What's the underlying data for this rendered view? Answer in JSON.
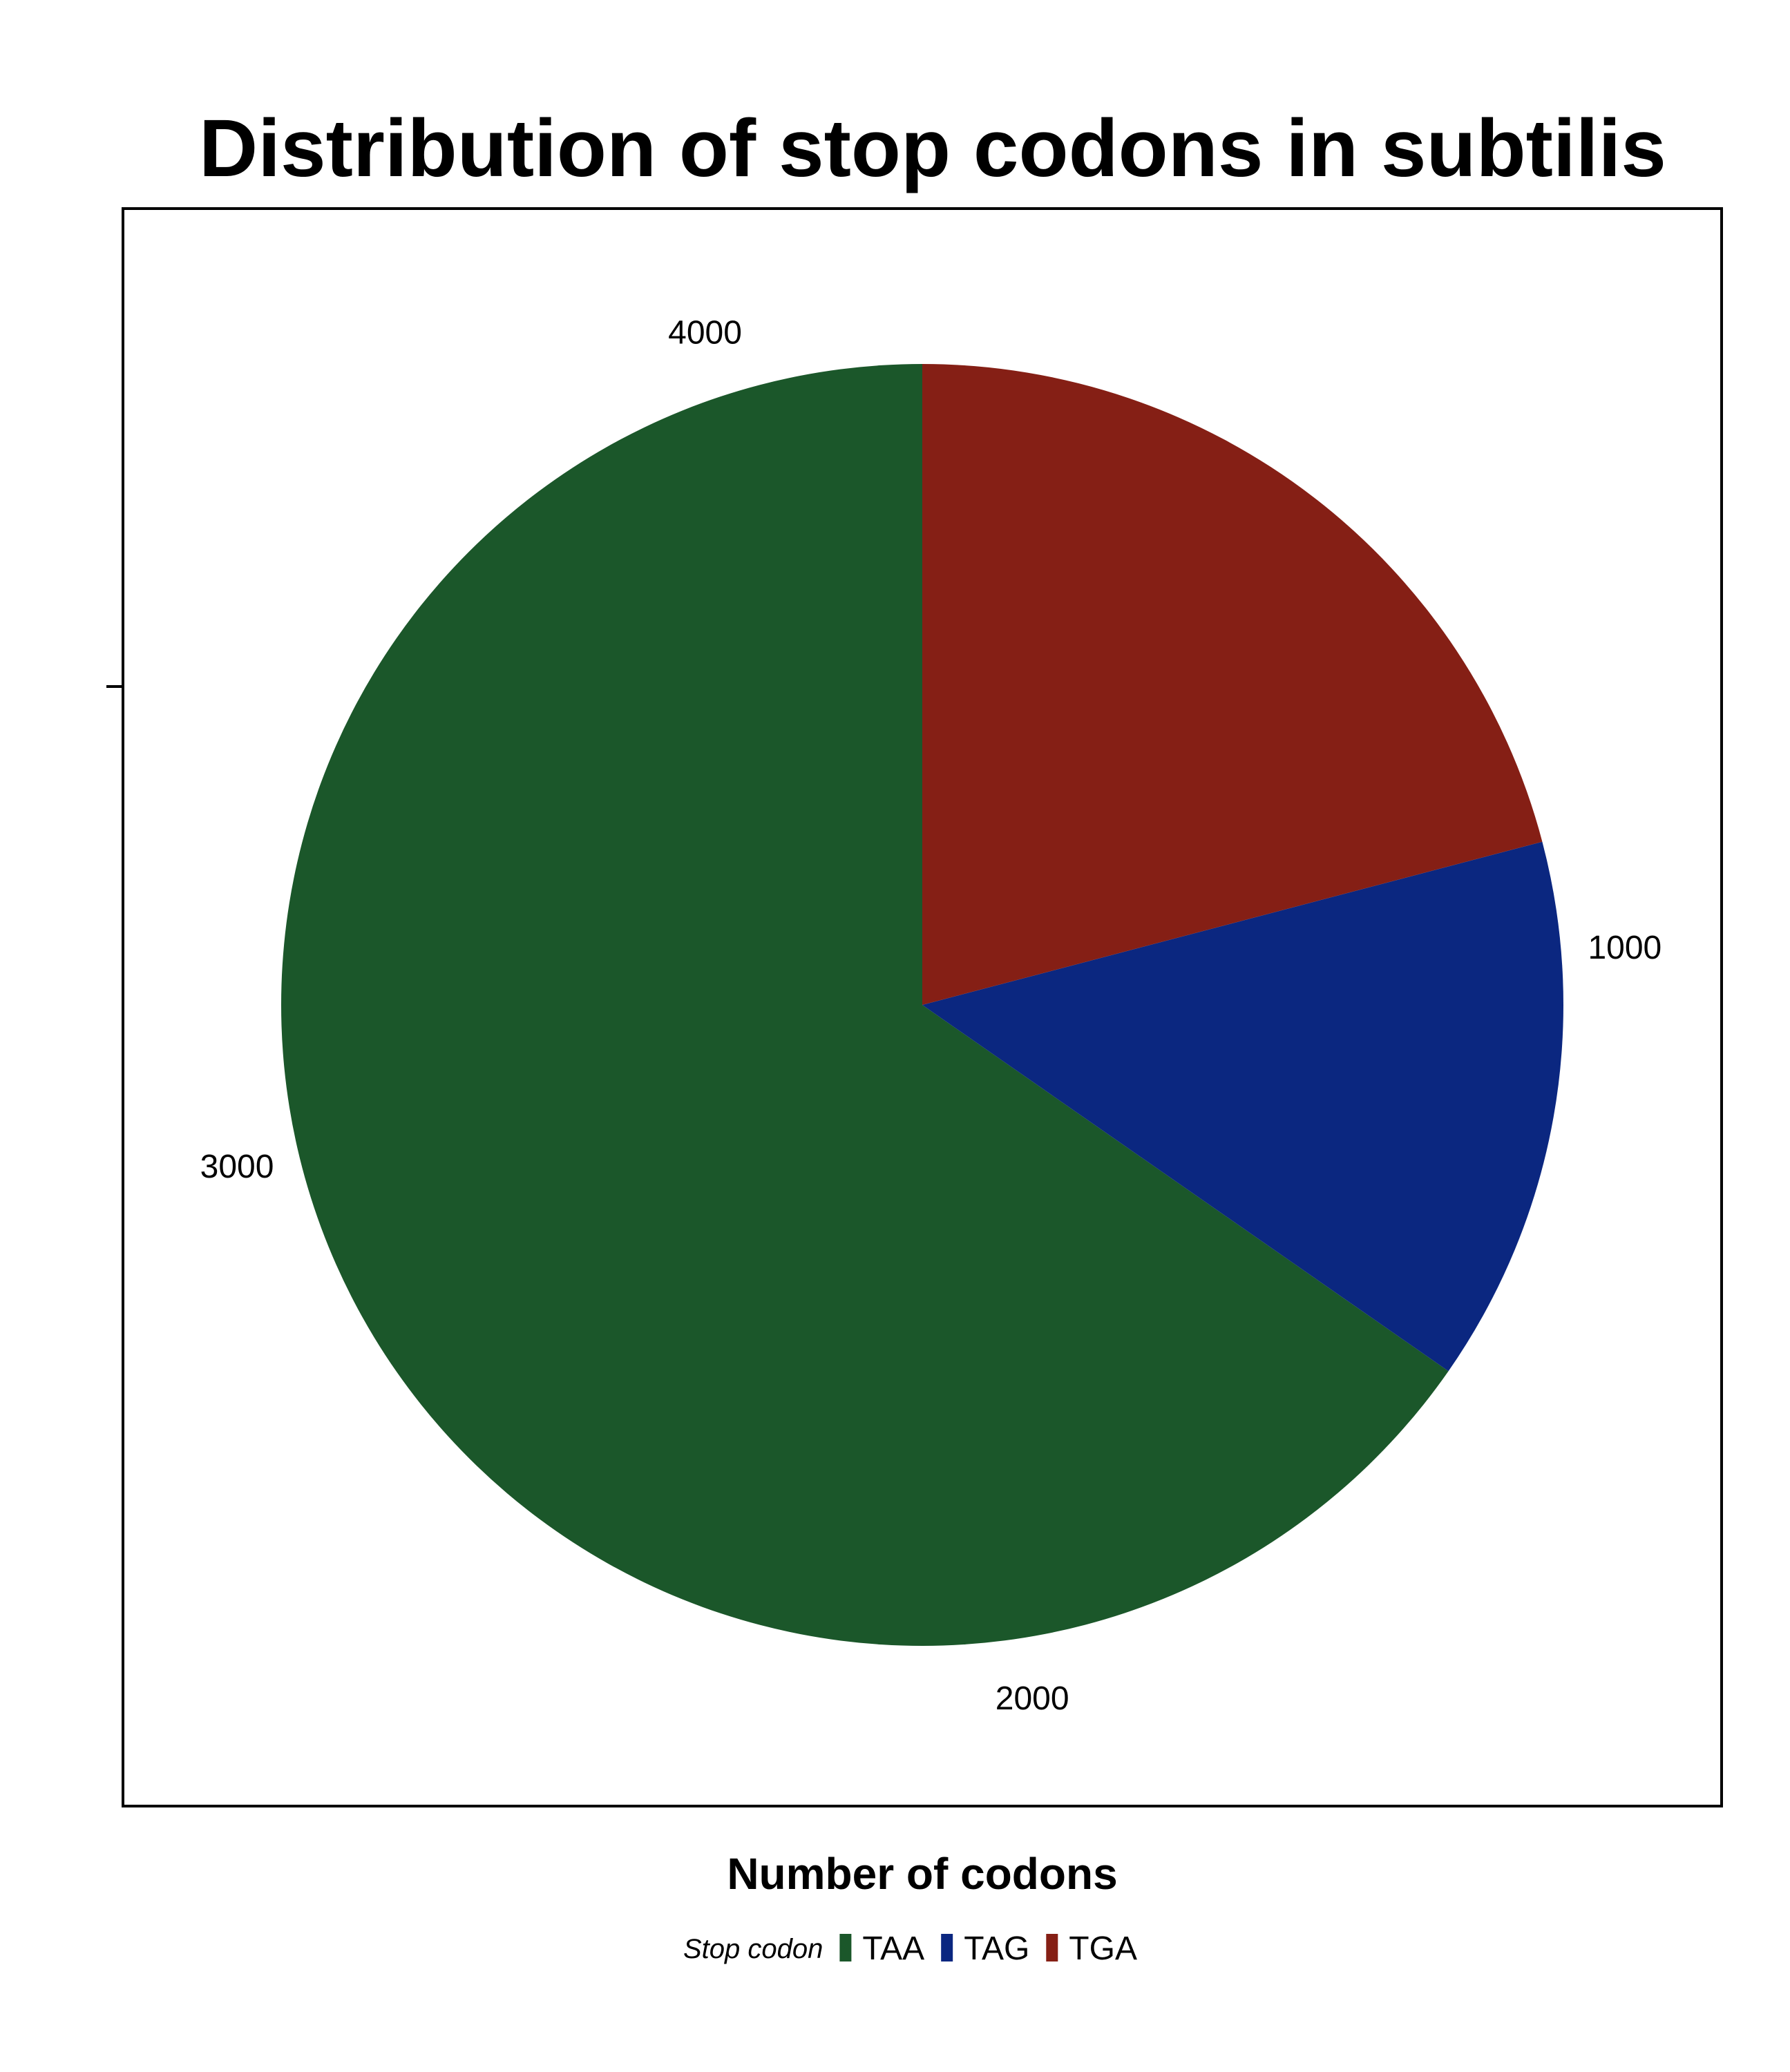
{
  "chart_data": {
    "type": "pie",
    "title": "Distribution of stop codons in subtilis",
    "xlabel": "Number of codons",
    "ylabel": "",
    "legend": {
      "title": "Stop codon",
      "position": "bottom"
    },
    "categories": [
      "TAA",
      "TAG",
      "TGA"
    ],
    "values": [
      2750,
      580,
      880
    ],
    "colors": {
      "TAA": "#1b572a",
      "TAG": "#0b2780",
      "TGA": "#851f15"
    },
    "theta_axis": {
      "min": 0,
      "max": 4210,
      "ticks": [
        1000,
        2000,
        3000,
        4000
      ]
    },
    "panel": {
      "border_color": "#000000",
      "background": "#ffffff",
      "grid": false
    }
  }
}
